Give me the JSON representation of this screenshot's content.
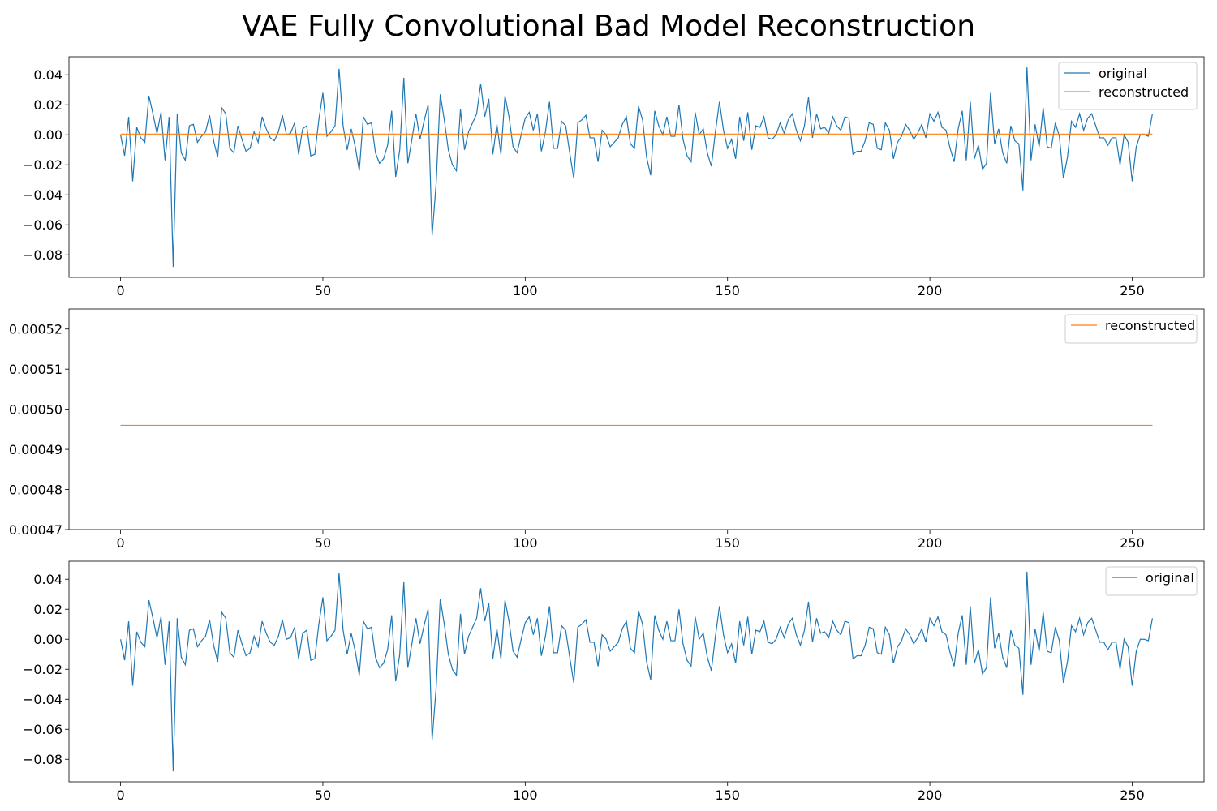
{
  "title": "VAE Fully Convolutional Bad Model Reconstruction",
  "colors": {
    "original": "#1f77b4",
    "reconstructed": "#ff7f0e"
  },
  "chart_data": [
    {
      "type": "line",
      "xlim": [
        -12.75,
        267.75
      ],
      "ylim": [
        -0.095,
        0.052
      ],
      "xticks": [
        0,
        50,
        100,
        150,
        200,
        250
      ],
      "yticks": [
        0.04,
        0.02,
        0.0,
        -0.02,
        -0.04,
        -0.06,
        -0.08
      ],
      "ytick_labels": [
        "0.04",
        "0.02",
        "0.00",
        "−0.02",
        "−0.04",
        "−0.06",
        "−0.08"
      ],
      "legend": {
        "position": "top-right",
        "entries": [
          "original",
          "reconstructed"
        ]
      },
      "series": [
        {
          "name": "original",
          "ref": "signal",
          "color": "#1f77b4"
        },
        {
          "name": "reconstructed",
          "constant": 0.000496,
          "color": "#ff7f0e"
        }
      ]
    },
    {
      "type": "line",
      "xlim": [
        -12.75,
        267.75
      ],
      "ylim": [
        0.00047,
        0.000525
      ],
      "xticks": [
        0,
        50,
        100,
        150,
        200,
        250
      ],
      "yticks": [
        0.00052,
        0.00051,
        0.0005,
        0.00049,
        0.00048,
        0.00047
      ],
      "ytick_labels": [
        "0.00052",
        "0.00051",
        "0.00050",
        "0.00049",
        "0.00048",
        "0.00047"
      ],
      "legend": {
        "position": "top-right",
        "entries": [
          "reconstructed"
        ]
      },
      "series": [
        {
          "name": "reconstructed",
          "constant": 0.000496,
          "color": "#ff7f0e"
        }
      ]
    },
    {
      "type": "line",
      "xlim": [
        -12.75,
        267.75
      ],
      "ylim": [
        -0.095,
        0.052
      ],
      "xticks": [
        0,
        50,
        100,
        150,
        200,
        250
      ],
      "yticks": [
        0.04,
        0.02,
        0.0,
        -0.02,
        -0.04,
        -0.06,
        -0.08
      ],
      "ytick_labels": [
        "0.04",
        "0.02",
        "0.00",
        "−0.02",
        "−0.04",
        "−0.06",
        "−0.08"
      ],
      "legend": {
        "position": "top-right",
        "entries": [
          "original"
        ]
      },
      "series": [
        {
          "name": "original",
          "ref": "signal",
          "color": "#1f77b4"
        }
      ]
    }
  ],
  "signal": {
    "x_start": 0,
    "x_step": 1,
    "y": [
      0.0,
      -0.014,
      0.012,
      -0.031,
      0.005,
      -0.002,
      -0.005,
      0.026,
      0.014,
      0.001,
      0.015,
      -0.017,
      0.012,
      -0.088,
      0.014,
      -0.012,
      -0.017,
      0.006,
      0.007,
      -0.005,
      -0.001,
      0.002,
      0.013,
      -0.004,
      -0.015,
      0.018,
      0.014,
      -0.009,
      -0.012,
      0.006,
      -0.003,
      -0.011,
      -0.009,
      0.002,
      -0.005,
      0.012,
      0.004,
      -0.002,
      -0.004,
      0.002,
      0.013,
      0.0,
      0.001,
      0.008,
      -0.013,
      0.004,
      0.006,
      -0.014,
      -0.013,
      0.01,
      0.028,
      -0.001,
      0.002,
      0.006,
      0.044,
      0.006,
      -0.01,
      0.004,
      -0.008,
      -0.024,
      0.012,
      0.007,
      0.008,
      -0.012,
      -0.019,
      -0.016,
      -0.007,
      0.016,
      -0.028,
      -0.01,
      0.038,
      -0.019,
      -0.003,
      0.014,
      -0.003,
      0.009,
      0.02,
      -0.067,
      -0.032,
      0.027,
      0.01,
      -0.01,
      -0.02,
      -0.024,
      0.017,
      -0.01,
      0.002,
      0.008,
      0.014,
      0.034,
      0.012,
      0.024,
      -0.013,
      0.007,
      -0.013,
      0.026,
      0.012,
      -0.008,
      -0.012,
      0.0,
      0.011,
      0.015,
      0.003,
      0.014,
      -0.011,
      0.002,
      0.022,
      -0.009,
      -0.009,
      0.009,
      0.006,
      -0.012,
      -0.029,
      0.008,
      0.01,
      0.013,
      -0.002,
      -0.002,
      -0.018,
      0.003,
      0.0,
      -0.008,
      -0.005,
      -0.002,
      0.007,
      0.012,
      -0.006,
      -0.009,
      0.019,
      0.01,
      -0.015,
      -0.027,
      0.016,
      0.006,
      0.0,
      0.012,
      -0.001,
      -0.001,
      0.02,
      -0.003,
      -0.014,
      -0.018,
      0.015,
      0.0,
      0.004,
      -0.012,
      -0.021,
      0.002,
      0.022,
      0.003,
      -0.009,
      -0.003,
      -0.016,
      0.012,
      -0.004,
      0.015,
      -0.01,
      0.006,
      0.005,
      0.012,
      -0.002,
      -0.003,
      0.0,
      0.008,
      0.001,
      0.01,
      0.014,
      0.003,
      -0.004,
      0.006,
      0.025,
      -0.002,
      0.014,
      0.004,
      0.005,
      0.001,
      0.012,
      0.006,
      0.003,
      0.012,
      0.011,
      -0.013,
      -0.011,
      -0.011,
      -0.004,
      0.008,
      0.007,
      -0.009,
      -0.01,
      0.008,
      0.003,
      -0.016,
      -0.005,
      -0.001,
      0.007,
      0.003,
      -0.003,
      0.001,
      0.007,
      -0.002,
      0.014,
      0.009,
      0.015,
      0.005,
      0.003,
      -0.009,
      -0.018,
      0.004,
      0.016,
      -0.017,
      0.022,
      -0.016,
      -0.007,
      -0.023,
      -0.019,
      0.028,
      -0.006,
      0.004,
      -0.012,
      -0.019,
      0.006,
      -0.004,
      -0.006,
      -0.037,
      0.045,
      -0.017,
      0.007,
      -0.008,
      0.018,
      -0.008,
      -0.009,
      0.008,
      -0.001,
      -0.029,
      -0.015,
      0.009,
      0.005,
      0.014,
      0.003,
      0.011,
      0.014,
      0.006,
      -0.002,
      -0.002,
      -0.007,
      -0.002,
      -0.002,
      -0.02,
      0.0,
      -0.005,
      -0.031,
      -0.008,
      0.0,
      0.0,
      -0.001,
      0.014
    ]
  }
}
